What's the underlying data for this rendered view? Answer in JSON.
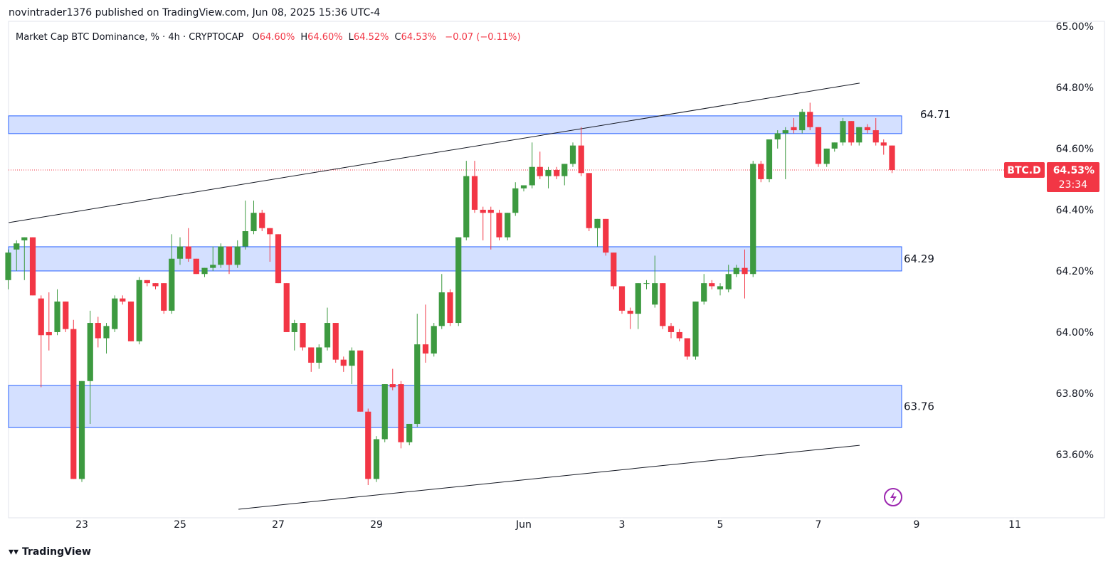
{
  "header": "novintrader1376 published on TradingView.com, Jun 08, 2025 15:36 UTC-4",
  "legend": {
    "symbol": "Market Cap BTC Dominance, % · 4h · CRYPTOCAP",
    "ohlc": [
      {
        "key": "O",
        "value": "64.60%"
      },
      {
        "key": "H",
        "value": "64.60%"
      },
      {
        "key": "L",
        "value": "64.52%"
      },
      {
        "key": "C",
        "value": "64.53%"
      }
    ],
    "change": "−0.07 (−0.11%)"
  },
  "footer": "TradingView",
  "chart_data": {
    "type": "candlestick",
    "up_color": "#3d9a40",
    "down_color": "#f23645",
    "xlim": [
      21.507,
      42.638
    ],
    "xticks": [
      {
        "value": 23,
        "label": "23"
      },
      {
        "value": 25,
        "label": "25"
      },
      {
        "value": 27,
        "label": "27"
      },
      {
        "value": 29,
        "label": "29"
      },
      {
        "value": 32,
        "label": "Jun"
      },
      {
        "value": 34,
        "label": "3"
      },
      {
        "value": 36,
        "label": "5"
      },
      {
        "value": 38,
        "label": "7"
      },
      {
        "value": 40,
        "label": "9"
      },
      {
        "value": 42,
        "label": "11"
      }
    ],
    "ylim": [
      63.393,
      65.016
    ],
    "yticks": [
      {
        "value": 63.6,
        "label": "63.60%"
      },
      {
        "value": 63.8,
        "label": "63.80%"
      },
      {
        "value": 64.0,
        "label": "64.00%"
      },
      {
        "value": 64.2,
        "label": "64.20%"
      },
      {
        "value": 64.4,
        "label": "64.40%"
      },
      {
        "value": 64.6,
        "label": "64.60%"
      },
      {
        "value": 64.8,
        "label": "64.80%"
      },
      {
        "value": 65.0,
        "label": "65.00%"
      }
    ],
    "x": [
      21.5,
      21.67,
      21.83,
      22,
      22.17,
      22.33,
      22.5,
      22.67,
      22.83,
      23,
      23.17,
      23.33,
      23.5,
      23.67,
      23.83,
      24,
      24.17,
      24.33,
      24.5,
      24.67,
      24.83,
      25,
      25.17,
      25.33,
      25.5,
      25.67,
      25.83,
      26,
      26.17,
      26.33,
      26.5,
      26.67,
      26.83,
      27,
      27.17,
      27.33,
      27.5,
      27.67,
      27.83,
      28,
      28.17,
      28.33,
      28.5,
      28.67,
      28.83,
      29,
      29.17,
      29.33,
      29.5,
      29.67,
      29.83,
      30,
      30.17,
      30.33,
      30.5,
      30.67,
      30.83,
      31,
      31.17,
      31.33,
      31.5,
      31.67,
      31.83,
      32,
      32.17,
      32.33,
      32.5,
      32.67,
      32.83,
      33,
      33.17,
      33.33,
      33.5,
      33.67,
      33.83,
      34,
      34.17,
      34.33,
      34.5,
      34.67,
      34.83,
      35,
      35.17,
      35.33,
      35.5,
      35.67,
      35.83,
      36,
      36.17,
      36.33,
      36.5,
      36.67,
      36.83,
      37,
      37.17,
      37.33,
      37.5,
      37.67,
      37.83,
      38,
      38.17,
      38.33,
      38.5,
      38.67,
      38.83,
      39,
      39.17,
      39.33,
      39.5
    ],
    "open": [
      64.17,
      64.27,
      64.3,
      64.31,
      64.11,
      64.0,
      64.0,
      64.1,
      64.01,
      63.52,
      63.84,
      64.03,
      63.98,
      64.01,
      64.11,
      64.1,
      63.97,
      64.17,
      64.16,
      64.16,
      64.07,
      64.24,
      64.28,
      64.24,
      64.19,
      64.21,
      64.22,
      64.28,
      64.22,
      64.28,
      64.33,
      64.39,
      64.34,
      64.32,
      64.16,
      64.0,
      64.03,
      63.95,
      63.9,
      63.95,
      64.03,
      63.91,
      63.89,
      63.94,
      63.74,
      63.52,
      63.65,
      63.83,
      63.83,
      63.64,
      63.7,
      63.96,
      63.93,
      64.02,
      64.13,
      64.03,
      64.31,
      64.51,
      64.4,
      64.4,
      64.39,
      64.31,
      64.39,
      64.47,
      64.48,
      64.54,
      64.51,
      64.53,
      64.51,
      64.55,
      64.61,
      64.52,
      64.34,
      64.37,
      64.26,
      64.15,
      64.07,
      64.06,
      64.16,
      64.09,
      64.16,
      64.02,
      64.0,
      63.98,
      63.92,
      64.1,
      64.16,
      64.14,
      64.14,
      64.19,
      64.21,
      64.19,
      64.55,
      64.5,
      64.63,
      64.65,
      64.67,
      64.66,
      64.72,
      64.67,
      64.55,
      64.6,
      64.62,
      64.69,
      64.62,
      64.67,
      64.66,
      64.62,
      64.61
    ],
    "high": [
      64.27,
      64.3,
      64.31,
      64.31,
      64.12,
      64.13,
      64.14,
      64.1,
      64.04,
      63.84,
      64.07,
      64.05,
      64.03,
      64.12,
      64.12,
      64.1,
      64.18,
      64.17,
      64.16,
      64.16,
      64.32,
      64.31,
      64.34,
      64.24,
      64.21,
      64.28,
      64.29,
      64.28,
      64.3,
      64.43,
      64.43,
      64.4,
      64.34,
      64.32,
      64.16,
      64.04,
      64.03,
      63.95,
      63.96,
      64.08,
      64.03,
      63.92,
      63.95,
      63.94,
      63.75,
      63.66,
      63.83,
      63.88,
      63.84,
      63.7,
      64.06,
      64.09,
      64.03,
      64.19,
      64.14,
      64.31,
      64.56,
      64.56,
      64.41,
      64.41,
      64.4,
      64.39,
      64.49,
      64.48,
      64.62,
      64.59,
      64.54,
      64.54,
      64.55,
      64.62,
      64.67,
      64.52,
      64.37,
      64.37,
      64.26,
      64.15,
      64.08,
      64.16,
      64.17,
      64.25,
      64.16,
      64.03,
      64.01,
      63.98,
      64.1,
      64.19,
      64.17,
      64.16,
      64.22,
      64.22,
      64.27,
      64.56,
      64.56,
      64.63,
      64.66,
      64.67,
      64.7,
      64.73,
      64.75,
      64.67,
      64.6,
      64.62,
      64.7,
      64.69,
      64.67,
      64.68,
      64.7,
      64.63,
      64.61
    ],
    "low": [
      64.14,
      64.2,
      64.17,
      64.12,
      63.82,
      63.94,
      63.99,
      64.0,
      63.52,
      63.51,
      63.7,
      63.95,
      63.93,
      64.0,
      64.09,
      63.97,
      63.96,
      64.15,
      64.14,
      64.06,
      64.06,
      64.22,
      64.23,
      64.19,
      64.18,
      64.2,
      64.21,
      64.19,
      64.21,
      64.27,
      64.32,
      64.33,
      64.23,
      64.16,
      64.0,
      63.94,
      63.94,
      63.87,
      63.88,
      63.94,
      63.9,
      63.87,
      63.83,
      63.74,
      63.5,
      63.51,
      63.64,
      63.81,
      63.62,
      63.63,
      63.69,
      63.9,
      63.92,
      64.01,
      64.02,
      64.02,
      64.3,
      64.39,
      64.3,
      64.27,
      64.3,
      64.3,
      64.38,
      64.46,
      64.47,
      64.5,
      64.47,
      64.5,
      64.48,
      64.54,
      64.51,
      64.33,
      64.28,
      64.25,
      64.14,
      64.06,
      64.01,
      64.01,
      64.14,
      64.08,
      64.01,
      63.98,
      63.97,
      63.91,
      63.91,
      64.09,
      64.14,
      64.12,
      64.13,
      64.18,
      64.11,
      64.18,
      64.49,
      64.49,
      64.6,
      64.5,
      64.65,
      64.65,
      64.66,
      64.54,
      64.54,
      64.59,
      64.61,
      64.61,
      64.61,
      64.65,
      64.61,
      64.58,
      64.52
    ],
    "close": [
      64.26,
      64.29,
      64.31,
      64.12,
      63.99,
      63.99,
      64.1,
      64.01,
      63.52,
      63.84,
      64.03,
      63.98,
      64.02,
      64.11,
      64.1,
      63.97,
      64.17,
      64.16,
      64.15,
      64.07,
      64.24,
      64.28,
      64.24,
      64.19,
      64.21,
      64.22,
      64.28,
      64.22,
      64.28,
      64.33,
      64.39,
      64.34,
      64.32,
      64.16,
      64.0,
      64.03,
      63.95,
      63.9,
      63.95,
      64.03,
      63.91,
      63.89,
      63.94,
      63.74,
      63.52,
      63.65,
      63.83,
      63.82,
      63.64,
      63.7,
      63.96,
      63.93,
      64.02,
      64.13,
      64.03,
      64.31,
      64.51,
      64.4,
      64.39,
      64.39,
      64.31,
      64.39,
      64.47,
      64.48,
      64.54,
      64.51,
      64.53,
      64.51,
      64.55,
      64.61,
      64.52,
      64.34,
      64.37,
      64.26,
      64.15,
      64.07,
      64.06,
      64.16,
      64.16,
      64.16,
      64.02,
      64.0,
      63.98,
      63.92,
      64.1,
      64.16,
      64.15,
      64.15,
      64.19,
      64.21,
      64.19,
      64.55,
      64.5,
      64.63,
      64.65,
      64.66,
      64.66,
      64.72,
      64.67,
      64.55,
      64.6,
      64.62,
      64.69,
      64.62,
      64.67,
      64.66,
      64.62,
      64.61,
      64.53
    ],
    "zones": [
      {
        "top": 64.707,
        "bottom": 64.649,
        "label": 64.71
      },
      {
        "top": 64.279,
        "bottom": 64.2,
        "label": 64.29
      },
      {
        "top": 63.826,
        "bottom": 63.688,
        "label": 63.76
      }
    ],
    "trendlines": [
      {
        "x": [
          21.51,
          38.84
        ],
        "y": [
          64.358,
          64.814
        ]
      },
      {
        "x": [
          26.19,
          38.84
        ],
        "y": [
          63.421,
          63.63
        ]
      }
    ],
    "last_price": {
      "symbol": "BTC.D",
      "value": 64.53,
      "label": "64.53%",
      "countdown": "23:34"
    }
  }
}
